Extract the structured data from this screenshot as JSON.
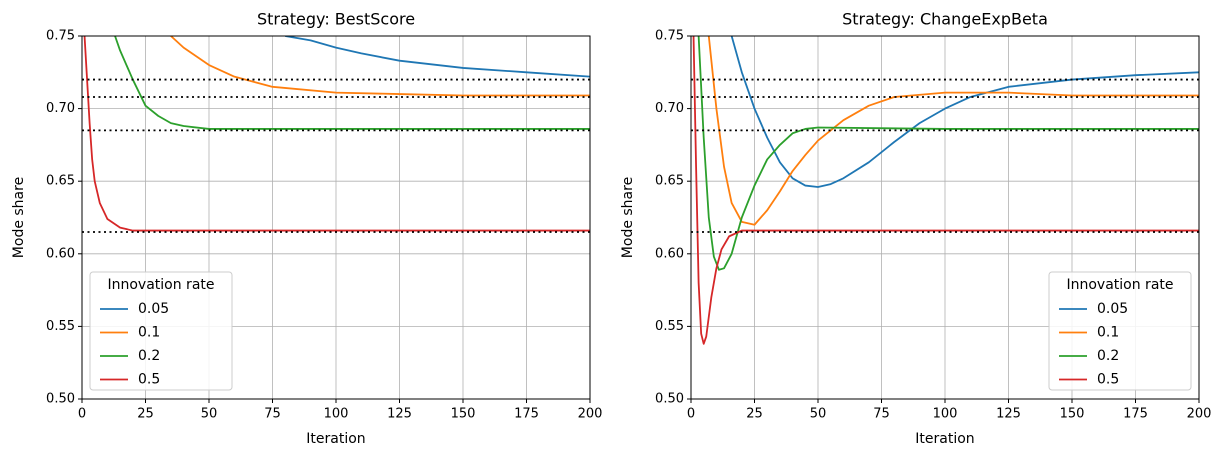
{
  "chart_data": [
    {
      "type": "line",
      "title": "Strategy: BestScore",
      "xlabel": "Iteration",
      "ylabel": "Mode share",
      "xlim": [
        0,
        200
      ],
      "ylim": [
        0.5,
        0.75
      ],
      "xticks": [
        0,
        25,
        50,
        75,
        100,
        125,
        150,
        175,
        200
      ],
      "yticks": [
        {
          "value": 0.5,
          "label": "0.50"
        },
        0.55,
        {
          "value": 0.6,
          "label": "0.60"
        },
        0.65,
        {
          "value": 0.7,
          "label": "0.70"
        },
        0.75
      ],
      "grid": true,
      "legend_title": "Innovation rate",
      "legend": "lower left",
      "hlines": [
        0.72,
        0.708,
        0.685,
        0.615
      ],
      "hline_color": "#000000",
      "series": [
        {
          "name": "0.05",
          "color": "#1f77b4",
          "x": [
            80,
            90,
            100,
            110,
            125,
            150,
            175,
            200
          ],
          "values": [
            0.75,
            0.747,
            0.742,
            0.738,
            0.733,
            0.728,
            0.725,
            0.722
          ]
        },
        {
          "name": "0.1",
          "color": "#ff7f0e",
          "x": [
            35,
            40,
            50,
            60,
            75,
            100,
            125,
            150,
            200
          ],
          "values": [
            0.75,
            0.742,
            0.73,
            0.722,
            0.715,
            0.711,
            0.71,
            0.709,
            0.709
          ]
        },
        {
          "name": "0.2",
          "color": "#2ca02c",
          "x": [
            13,
            15,
            20,
            25,
            30,
            35,
            40,
            50,
            100,
            200
          ],
          "values": [
            0.75,
            0.74,
            0.72,
            0.702,
            0.695,
            0.69,
            0.688,
            0.686,
            0.686,
            0.686
          ]
        },
        {
          "name": "0.5",
          "color": "#d62728",
          "x": [
            1,
            2,
            3,
            4,
            5,
            7,
            10,
            15,
            20,
            50,
            200
          ],
          "values": [
            0.75,
            0.72,
            0.69,
            0.665,
            0.65,
            0.635,
            0.624,
            0.618,
            0.616,
            0.616,
            0.616
          ]
        }
      ]
    },
    {
      "type": "line",
      "title": "Strategy: ChangeExpBeta",
      "xlabel": "Iteration",
      "ylabel": "Mode share",
      "xlim": [
        0,
        200
      ],
      "ylim": [
        0.5,
        0.75
      ],
      "xticks": [
        0,
        25,
        50,
        75,
        100,
        125,
        150,
        175,
        200
      ],
      "yticks": [
        {
          "value": 0.5,
          "label": "0.50"
        },
        0.55,
        {
          "value": 0.6,
          "label": "0.60"
        },
        0.65,
        {
          "value": 0.7,
          "label": "0.70"
        },
        0.75
      ],
      "grid": true,
      "legend_title": "Innovation rate",
      "legend": "lower right",
      "hlines": [
        0.72,
        0.708,
        0.685,
        0.615
      ],
      "hline_color": "#000000",
      "series": [
        {
          "name": "0.05",
          "color": "#1f77b4",
          "x": [
            16,
            20,
            25,
            30,
            35,
            40,
            45,
            50,
            55,
            60,
            70,
            80,
            90,
            100,
            110,
            125,
            150,
            175,
            200
          ],
          "values": [
            0.75,
            0.725,
            0.7,
            0.68,
            0.663,
            0.652,
            0.647,
            0.646,
            0.648,
            0.652,
            0.663,
            0.677,
            0.69,
            0.7,
            0.708,
            0.715,
            0.72,
            0.723,
            0.725
          ]
        },
        {
          "name": "0.1",
          "color": "#ff7f0e",
          "x": [
            7,
            10,
            13,
            16,
            20,
            25,
            30,
            35,
            40,
            45,
            50,
            60,
            70,
            80,
            100,
            125,
            150,
            200
          ],
          "values": [
            0.75,
            0.7,
            0.66,
            0.635,
            0.622,
            0.62,
            0.63,
            0.643,
            0.657,
            0.668,
            0.678,
            0.692,
            0.702,
            0.708,
            0.711,
            0.711,
            0.709,
            0.709
          ]
        },
        {
          "name": "0.2",
          "color": "#2ca02c",
          "x": [
            3,
            5,
            7,
            9,
            11,
            13,
            16,
            20,
            25,
            30,
            35,
            40,
            45,
            50,
            100,
            200
          ],
          "values": [
            0.75,
            0.68,
            0.625,
            0.598,
            0.589,
            0.59,
            0.6,
            0.625,
            0.647,
            0.665,
            0.675,
            0.683,
            0.686,
            0.687,
            0.686,
            0.686
          ]
        },
        {
          "name": "0.5",
          "color": "#d62728",
          "x": [
            1,
            2,
            3,
            4,
            5,
            6,
            8,
            10,
            12,
            15,
            20,
            50,
            200
          ],
          "values": [
            0.75,
            0.66,
            0.58,
            0.545,
            0.538,
            0.543,
            0.57,
            0.59,
            0.603,
            0.612,
            0.616,
            0.616,
            0.616
          ]
        }
      ]
    }
  ]
}
